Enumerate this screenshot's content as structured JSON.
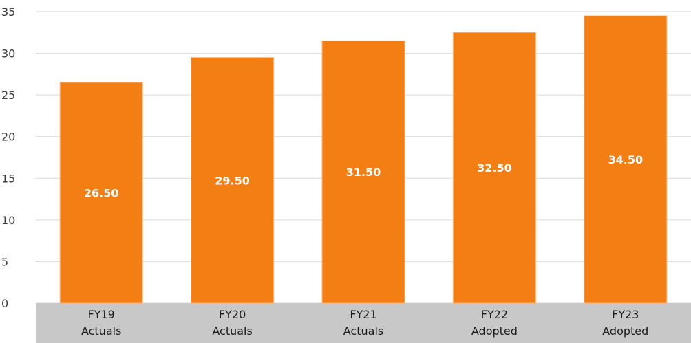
{
  "colors": {
    "bar": "#f37e13",
    "bar_edge": "#f9b47a",
    "category_band": "#c8c8c8",
    "gridline": "#d9d9d9",
    "data_label": "#ffffff"
  },
  "chart_data": {
    "type": "bar",
    "categories": [
      [
        "FY19",
        "Actuals"
      ],
      [
        "FY20",
        "Actuals"
      ],
      [
        "FY21",
        "Actuals"
      ],
      [
        "FY22",
        "Adopted"
      ],
      [
        "FY23",
        "Adopted"
      ]
    ],
    "values": [
      26.5,
      29.5,
      31.5,
      32.5,
      34.5
    ],
    "data_labels": [
      "26.50",
      "29.50",
      "31.50",
      "32.50",
      "34.50"
    ],
    "title": "",
    "xlabel": "",
    "ylabel": "",
    "ylim": [
      0,
      35
    ],
    "yticks": [
      "0",
      "5",
      "10",
      "15",
      "20",
      "25",
      "30",
      "35"
    ],
    "grid": true,
    "legend": "none"
  }
}
